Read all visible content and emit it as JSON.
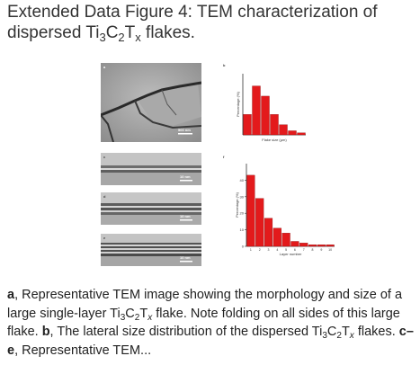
{
  "title": {
    "prefix": "Extended Data Figure 4: TEM characterization of",
    "line2_pre": "dispersed Ti",
    "sub3": "3",
    "c": "C",
    "sub2": "2",
    "t": "T",
    "subx": "x",
    "line2_post": " flakes."
  },
  "panels": {
    "a": {
      "tag": "a",
      "scale": "500 nm"
    },
    "b": {
      "tag": "b"
    },
    "c": {
      "tag": "c",
      "scale": "10 nm"
    },
    "d": {
      "tag": "d",
      "scale": "10 nm"
    },
    "e": {
      "tag": "e",
      "scale": "10 nm"
    },
    "f": {
      "tag": "f"
    }
  },
  "chart_data": [
    {
      "type": "bar",
      "panel": "b",
      "xlabel": "Flake size (μm)",
      "ylabel": "Percentage (%)",
      "color": "#e31a1c",
      "values": [
        10,
        24,
        19,
        10,
        5,
        2,
        1
      ],
      "ylim": [
        0,
        30
      ]
    },
    {
      "type": "bar",
      "panel": "f",
      "xlabel": "Layer number",
      "ylabel": "Percentage (%)",
      "color": "#e31a1c",
      "categories": [
        "1",
        "2",
        "3",
        "4",
        "5",
        "6",
        "7",
        "8",
        "9",
        "10"
      ],
      "values": [
        43,
        29,
        17,
        11,
        8,
        3,
        2,
        1,
        1,
        1
      ],
      "ylim": [
        0,
        50
      ],
      "yticks": [
        "0",
        "10",
        "20",
        "30",
        "40"
      ]
    }
  ],
  "caption": {
    "a_tag": "a",
    "a_text": ", Representative TEM image showing the morphology and size of a large single-layer Ti",
    "a_s3": "3",
    "a_c": "C",
    "a_s2": "2",
    "a_t": "T",
    "a_sx": "x",
    "a_text2": " flake. Note folding on all sides of this large flake. ",
    "b_tag": "b",
    "b_text": ", The lateral size distribution of the dispersed Ti",
    "b_s3": "3",
    "b_c": "C",
    "b_s2": "2",
    "b_t": "T",
    "b_sx": "x",
    "b_text2": " flakes. ",
    "ce_tag": "c–e",
    "ce_text": ", Representative TEM..."
  }
}
